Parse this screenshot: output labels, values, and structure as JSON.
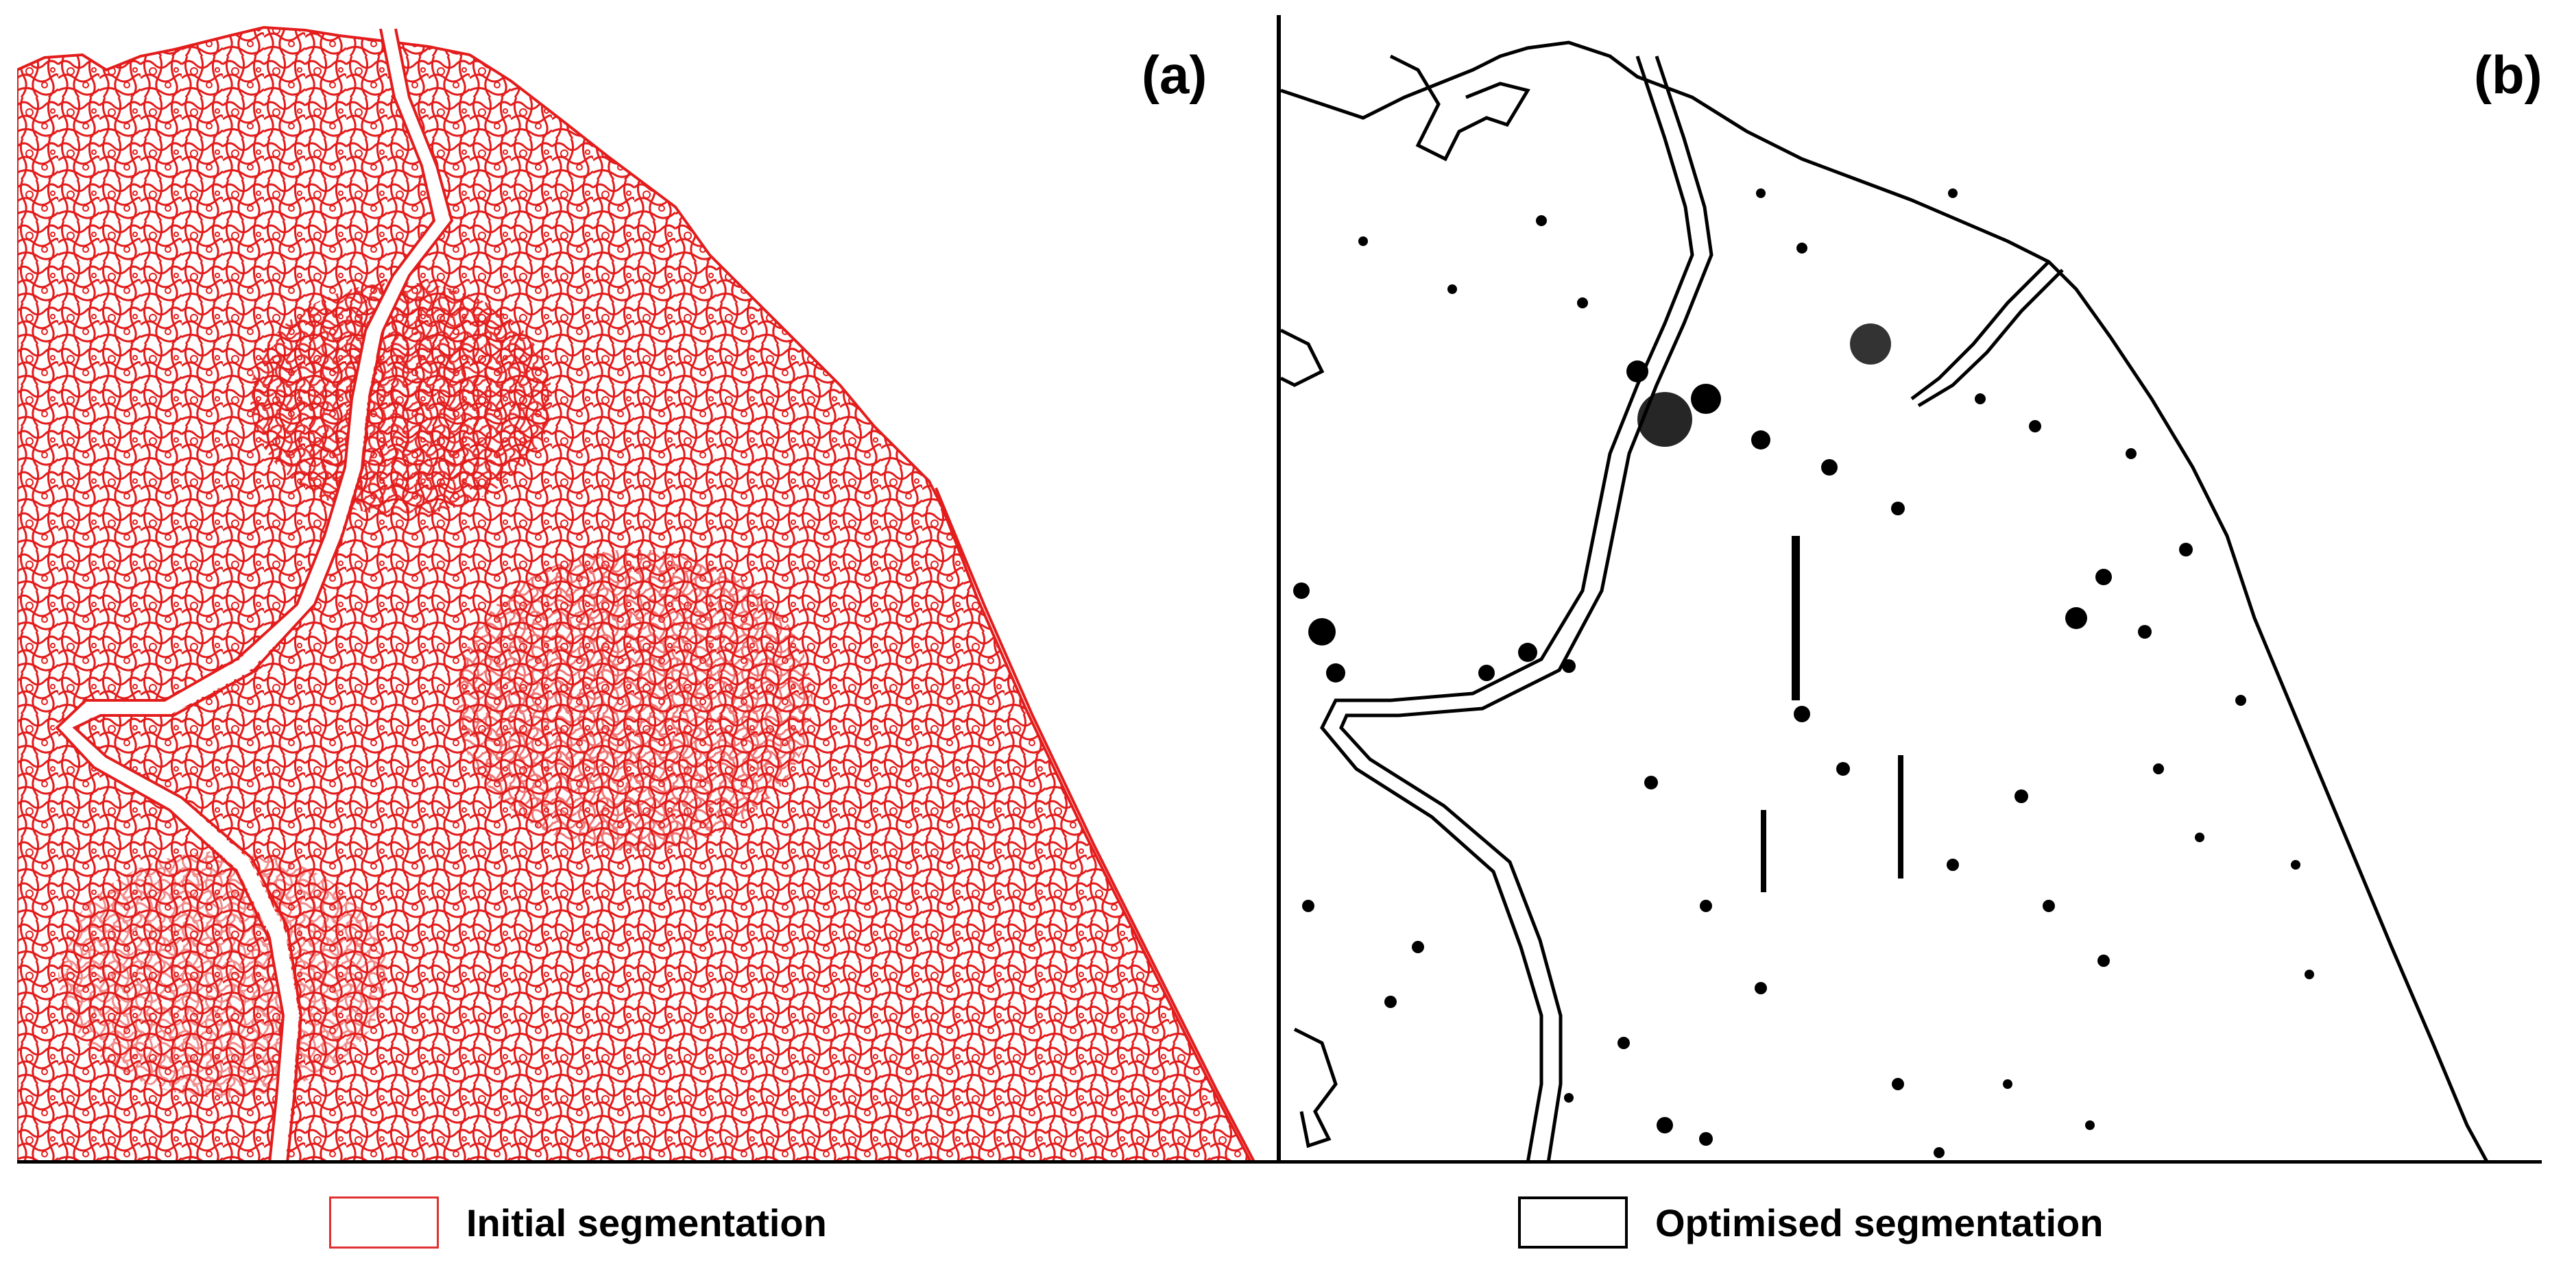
{
  "panels": {
    "a": {
      "label": "(a)"
    },
    "b": {
      "label": "(b)"
    }
  },
  "legend": {
    "initial": {
      "label": "Initial segmentation",
      "color": "#e03030"
    },
    "optimised": {
      "label": "Optimised segmentation",
      "color": "#000000"
    }
  }
}
